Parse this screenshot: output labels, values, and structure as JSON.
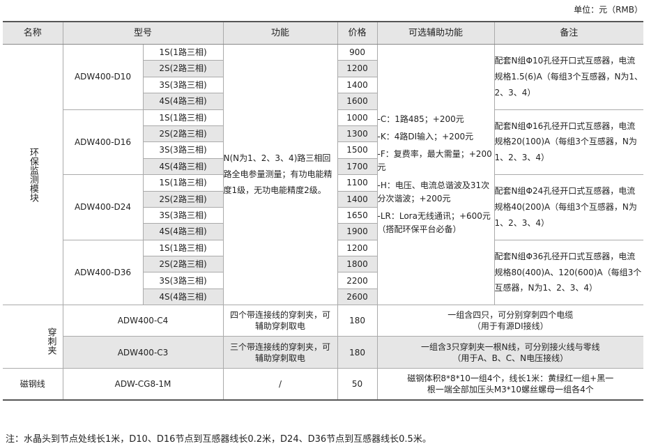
{
  "unit": "单位：元（RMB）",
  "headers": [
    "名称",
    "型号",
    "功能",
    "价格",
    "可选辅助功能",
    "备注"
  ],
  "env": {
    "name": "环保监测模块",
    "function": "N(N为1、2、3、4)路三相回路全电参量测量；有功电能精度1级，无功电能精度2级。",
    "options": [
      "-C：1路485；+200元",
      "-K：4路DI输入；+200元",
      "-F：复费率，最大需量；+200元",
      "-H：电压、电流总谐波及31次分次谐波；+200元",
      "-LR：Lora无线通讯；+600元（搭配环保平台必备）"
    ],
    "models": [
      {
        "model": "ADW400-D10",
        "variants": [
          "1S(1路三相)",
          "2S(2路三相)",
          "3S(3路三相)",
          "4S(4路三相)"
        ],
        "prices": [
          "900",
          "1200",
          "1400",
          "1600"
        ],
        "note": "配套N组Φ10孔径开口式互感器，电流规格1.5(6)A（每组3个互感器，N为1、2、3、4）"
      },
      {
        "model": "ADW400-D16",
        "variants": [
          "1S(1路三相)",
          "2S(2路三相)",
          "3S(3路三相)",
          "4S(4路三相)"
        ],
        "prices": [
          "1000",
          "1300",
          "1500",
          "1700"
        ],
        "note": "配套N组Φ16孔径开口式互感器，电流规格20(100)A（每组3个互感器，N为1、2、3、4）"
      },
      {
        "model": "ADW400-D24",
        "variants": [
          "1S(1路三相)",
          "2S(2路三相)",
          "3S(3路三相)",
          "4S(4路三相)"
        ],
        "prices": [
          "1100",
          "1400",
          "1650",
          "1900"
        ],
        "note": "配套N组Φ24孔径开口式互感器，电流规格40(200)A（每组3个互感器，N为1、2、3、4）"
      },
      {
        "model": "ADW400-D36",
        "variants": [
          "1S(1路三相)",
          "2S(2路三相)",
          "3S(3路三相)",
          "4S(4路三相)"
        ],
        "prices": [
          "1200",
          "1800",
          "2200",
          "2600"
        ],
        "note": "配套N组Φ36孔径开口式互感器，电流规格80(400)A、120(600)A（每组3个互感器，N为1、2、3、4）"
      }
    ]
  },
  "clip": {
    "name": "穿刺夹",
    "rows": [
      {
        "model": "ADW400-C4",
        "function": "四个带连接线的穿刺夹，可辅助穿刺取电",
        "price": "180",
        "note1": "一组含四只，可分别穿刺四个电缆",
        "note2": "（用于有源DI接线）"
      },
      {
        "model": "ADW400-C3",
        "function": "三个带连接线的穿刺夹，可辅助穿刺取电",
        "price": "180",
        "note1": "一组含3只穿刺夹一根N线，可分别接火线与零线",
        "note2": "（用于A、B、C、N电压接线）"
      }
    ]
  },
  "magnet": {
    "name": "磁钢线",
    "model": "ADW-CG8-1M",
    "function": "/",
    "price": "50",
    "note1": "磁钢体积8*8*10一组4个，线长1米：黄绿红一组+黑一",
    "note2": "根一端全部加压头M3*10螺丝螺母一组各4个"
  },
  "footnote": "注：水晶头到节点处线长1米，D10、D16节点到互感器线长0.2米，D24、D36节点到互感器线长0.5米。"
}
